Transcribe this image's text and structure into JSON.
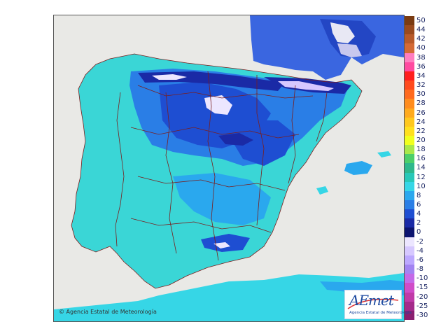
{
  "legend": {
    "items": [
      {
        "label": "50",
        "color": "#7a3b12"
      },
      {
        "label": "44",
        "color": "#9a4a1e"
      },
      {
        "label": "42",
        "color": "#b85a2a"
      },
      {
        "label": "40",
        "color": "#d46a36"
      },
      {
        "label": "38",
        "color": "#ff7ec0"
      },
      {
        "label": "36",
        "color": "#ff4aa0"
      },
      {
        "label": "34",
        "color": "#ff1e1e"
      },
      {
        "label": "32",
        "color": "#ff4a1e"
      },
      {
        "label": "30",
        "color": "#ff6a1e"
      },
      {
        "label": "28",
        "color": "#ff8c1e"
      },
      {
        "label": "26",
        "color": "#ffaa1e"
      },
      {
        "label": "24",
        "color": "#ffc81e"
      },
      {
        "label": "22",
        "color": "#ffe01e"
      },
      {
        "label": "20",
        "color": "#f0ff1e"
      },
      {
        "label": "18",
        "color": "#a8e84a"
      },
      {
        "label": "16",
        "color": "#4ccf6a"
      },
      {
        "label": "14",
        "color": "#2eb88c"
      },
      {
        "label": "12",
        "color": "#28c8b8"
      },
      {
        "label": "10",
        "color": "#36d6e6"
      },
      {
        "label": "8",
        "color": "#2aa8ee"
      },
      {
        "label": "6",
        "color": "#2a7ee6"
      },
      {
        "label": "4",
        "color": "#1e4ed2"
      },
      {
        "label": "2",
        "color": "#1a2aa6"
      },
      {
        "label": "0",
        "color": "#0c1470"
      },
      {
        "label": "-2",
        "color": "#ece6ff"
      },
      {
        "label": "-4",
        "color": "#d6c8ff"
      },
      {
        "label": "-6",
        "color": "#bca8ff"
      },
      {
        "label": "-8",
        "color": "#a284f2"
      },
      {
        "label": "-10",
        "color": "#c46ae8"
      },
      {
        "label": "-15",
        "color": "#d04cc8"
      },
      {
        "label": "-20",
        "color": "#c03aa8"
      },
      {
        "label": "-25",
        "color": "#a42a8a"
      },
      {
        "label": "-30",
        "color": "#8a1e70"
      }
    ]
  },
  "copyright": "© Agencia Estatal de Meteorología",
  "logo": {
    "text": "AEmet",
    "subtitle": "Agencia Estatal de Meteorología"
  },
  "colors": {
    "sea": "#e9e9e6",
    "border_lines": "#7a1e1e",
    "land_base": "#3ad6d6"
  }
}
